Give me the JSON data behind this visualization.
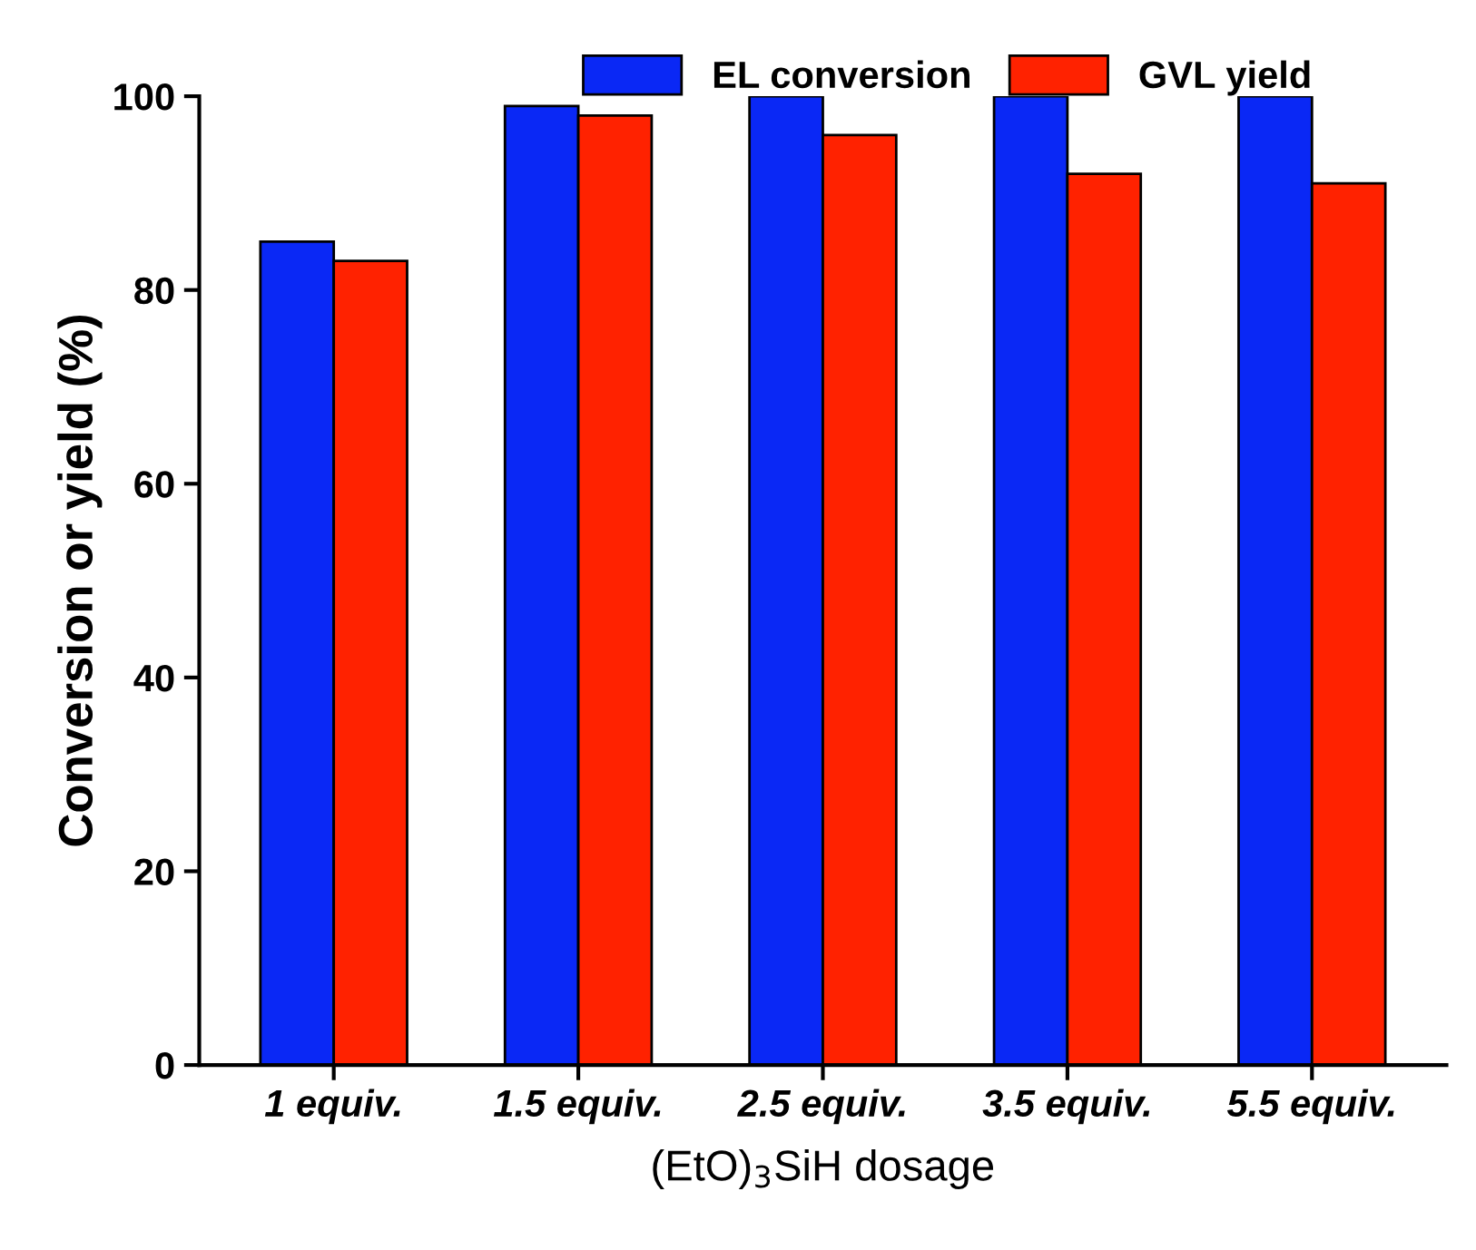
{
  "chart_data": {
    "type": "bar",
    "categories": [
      "1 equiv.",
      "1.5 equiv.",
      "2.5 equiv.",
      "3.5 equiv.",
      "5.5 equiv."
    ],
    "series": [
      {
        "name": "EL conversion",
        "color": "#0a28f5",
        "values": [
          85,
          99,
          100,
          100,
          100
        ]
      },
      {
        "name": "GVL yield",
        "color": "#ff2200",
        "values": [
          83,
          98,
          96,
          92,
          91
        ]
      }
    ],
    "xlabel": "(EtO)$_{3}$SiH dosage",
    "ylabel": "Conversion or yield (%)",
    "ylim": [
      0,
      100
    ],
    "yticks": [
      0,
      20,
      40,
      60,
      80,
      100
    ],
    "grid": false,
    "legend": "top"
  }
}
